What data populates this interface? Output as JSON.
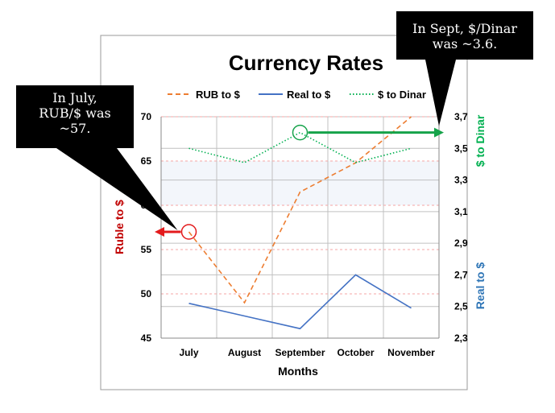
{
  "chart_data": {
    "type": "line",
    "title": "Currency Rates",
    "xlabel": "Months",
    "ylabel_left": "Ruble to $",
    "ylabel_right_upper": "$ to Dinar",
    "ylabel_right_lower": "Real to $",
    "categories": [
      "July",
      "August",
      "September",
      "October",
      "November"
    ],
    "ylim_left": [
      45,
      70
    ],
    "yticks_left": [
      "45",
      "50",
      "55",
      "60",
      "65",
      "70"
    ],
    "ylim_right": [
      2.3,
      3.7
    ],
    "yticks_right": [
      "2,3",
      "2,5",
      "2,7",
      "2,9",
      "3,1",
      "3,3",
      "3,5",
      "3,7"
    ],
    "grid": true,
    "legend_position": "top",
    "series": [
      {
        "name": "RUB to $",
        "axis": "left",
        "style": "dashed",
        "color": "#ED7D31",
        "values": [
          57,
          49,
          61.5,
          64.8,
          70
        ]
      },
      {
        "name": "Real to $",
        "axis": "right",
        "style": "solid",
        "color": "#4472C4",
        "values": [
          2.52,
          2.44,
          2.36,
          2.7,
          2.49
        ]
      },
      {
        "name": "$ to Dinar",
        "axis": "right",
        "style": "dotted",
        "color": "#00B050",
        "values": [
          3.5,
          3.41,
          3.6,
          3.41,
          3.5
        ]
      }
    ],
    "annotations": [
      {
        "lines": [
          "In July,",
          "RUB/$ was",
          "~57."
        ]
      },
      {
        "lines": [
          "In Sept,  $/Dinar",
          "was ~3.6."
        ]
      }
    ]
  },
  "colors": {
    "ruble_axis_label": "#C00000",
    "dinar_axis_label": "#00B050",
    "real_axis_label": "#2E75B6",
    "ruble_marker": "#E31A1C",
    "dinar_marker": "#16A34A",
    "red_gridline": "#F4A6A6",
    "gray_gridline": "#C0C0C0"
  }
}
